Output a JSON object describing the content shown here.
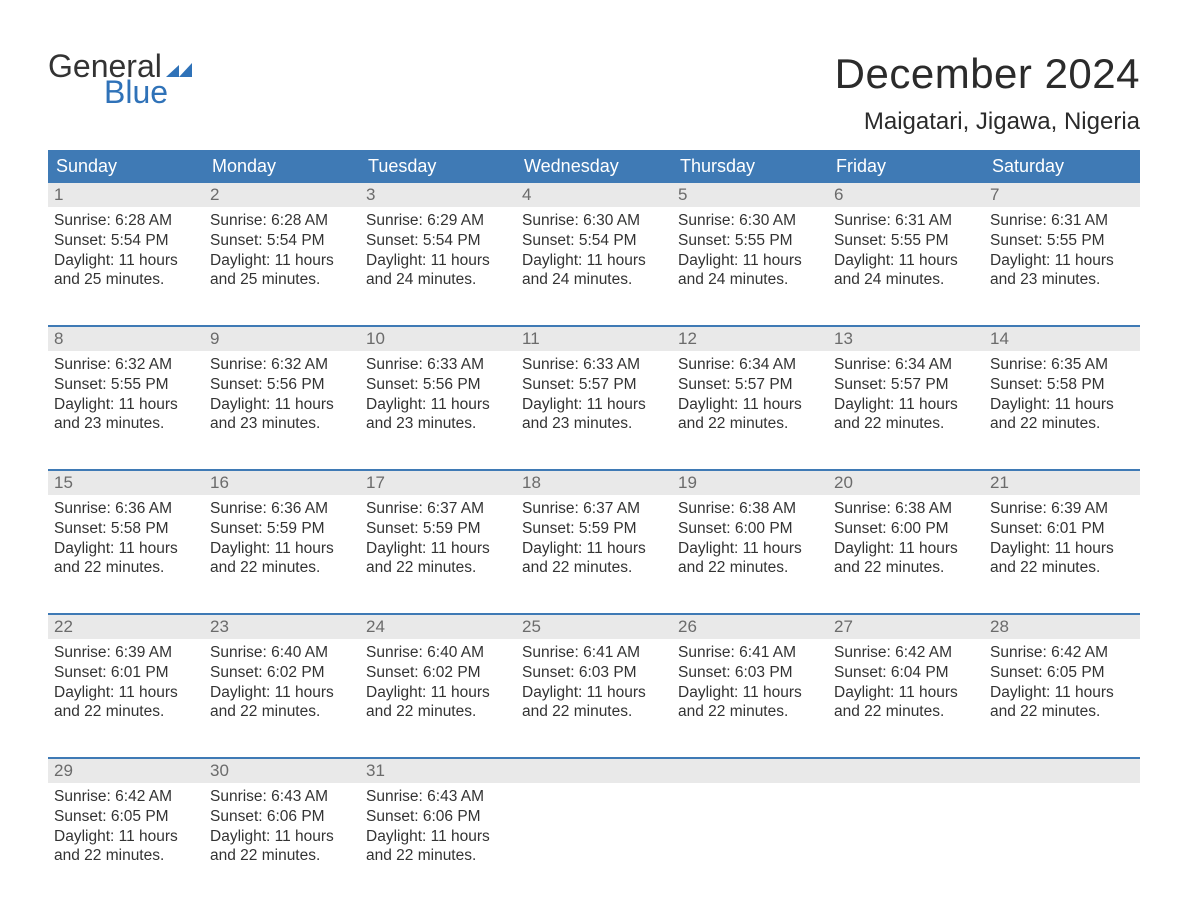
{
  "brand": {
    "part1": "General",
    "part2": "Blue",
    "flag_color": "#2f72b8"
  },
  "title": "December 2024",
  "location": "Maigatari, Jigawa, Nigeria",
  "colors": {
    "header_bg": "#3f7ab5",
    "header_text": "#ffffff",
    "daynum_bg": "#e9e9e9",
    "daynum_text": "#6b6b6b",
    "body_text": "#333333",
    "week_rule": "#3f7ab5",
    "page_bg": "#ffffff"
  },
  "day_headers": [
    "Sunday",
    "Monday",
    "Tuesday",
    "Wednesday",
    "Thursday",
    "Friday",
    "Saturday"
  ],
  "weeks": [
    [
      {
        "n": "1",
        "sr": "6:28 AM",
        "ss": "5:54 PM",
        "dl": "11 hours and 25 minutes."
      },
      {
        "n": "2",
        "sr": "6:28 AM",
        "ss": "5:54 PM",
        "dl": "11 hours and 25 minutes."
      },
      {
        "n": "3",
        "sr": "6:29 AM",
        "ss": "5:54 PM",
        "dl": "11 hours and 24 minutes."
      },
      {
        "n": "4",
        "sr": "6:30 AM",
        "ss": "5:54 PM",
        "dl": "11 hours and 24 minutes."
      },
      {
        "n": "5",
        "sr": "6:30 AM",
        "ss": "5:55 PM",
        "dl": "11 hours and 24 minutes."
      },
      {
        "n": "6",
        "sr": "6:31 AM",
        "ss": "5:55 PM",
        "dl": "11 hours and 24 minutes."
      },
      {
        "n": "7",
        "sr": "6:31 AM",
        "ss": "5:55 PM",
        "dl": "11 hours and 23 minutes."
      }
    ],
    [
      {
        "n": "8",
        "sr": "6:32 AM",
        "ss": "5:55 PM",
        "dl": "11 hours and 23 minutes."
      },
      {
        "n": "9",
        "sr": "6:32 AM",
        "ss": "5:56 PM",
        "dl": "11 hours and 23 minutes."
      },
      {
        "n": "10",
        "sr": "6:33 AM",
        "ss": "5:56 PM",
        "dl": "11 hours and 23 minutes."
      },
      {
        "n": "11",
        "sr": "6:33 AM",
        "ss": "5:57 PM",
        "dl": "11 hours and 23 minutes."
      },
      {
        "n": "12",
        "sr": "6:34 AM",
        "ss": "5:57 PM",
        "dl": "11 hours and 22 minutes."
      },
      {
        "n": "13",
        "sr": "6:34 AM",
        "ss": "5:57 PM",
        "dl": "11 hours and 22 minutes."
      },
      {
        "n": "14",
        "sr": "6:35 AM",
        "ss": "5:58 PM",
        "dl": "11 hours and 22 minutes."
      }
    ],
    [
      {
        "n": "15",
        "sr": "6:36 AM",
        "ss": "5:58 PM",
        "dl": "11 hours and 22 minutes."
      },
      {
        "n": "16",
        "sr": "6:36 AM",
        "ss": "5:59 PM",
        "dl": "11 hours and 22 minutes."
      },
      {
        "n": "17",
        "sr": "6:37 AM",
        "ss": "5:59 PM",
        "dl": "11 hours and 22 minutes."
      },
      {
        "n": "18",
        "sr": "6:37 AM",
        "ss": "5:59 PM",
        "dl": "11 hours and 22 minutes."
      },
      {
        "n": "19",
        "sr": "6:38 AM",
        "ss": "6:00 PM",
        "dl": "11 hours and 22 minutes."
      },
      {
        "n": "20",
        "sr": "6:38 AM",
        "ss": "6:00 PM",
        "dl": "11 hours and 22 minutes."
      },
      {
        "n": "21",
        "sr": "6:39 AM",
        "ss": "6:01 PM",
        "dl": "11 hours and 22 minutes."
      }
    ],
    [
      {
        "n": "22",
        "sr": "6:39 AM",
        "ss": "6:01 PM",
        "dl": "11 hours and 22 minutes."
      },
      {
        "n": "23",
        "sr": "6:40 AM",
        "ss": "6:02 PM",
        "dl": "11 hours and 22 minutes."
      },
      {
        "n": "24",
        "sr": "6:40 AM",
        "ss": "6:02 PM",
        "dl": "11 hours and 22 minutes."
      },
      {
        "n": "25",
        "sr": "6:41 AM",
        "ss": "6:03 PM",
        "dl": "11 hours and 22 minutes."
      },
      {
        "n": "26",
        "sr": "6:41 AM",
        "ss": "6:03 PM",
        "dl": "11 hours and 22 minutes."
      },
      {
        "n": "27",
        "sr": "6:42 AM",
        "ss": "6:04 PM",
        "dl": "11 hours and 22 minutes."
      },
      {
        "n": "28",
        "sr": "6:42 AM",
        "ss": "6:05 PM",
        "dl": "11 hours and 22 minutes."
      }
    ],
    [
      {
        "n": "29",
        "sr": "6:42 AM",
        "ss": "6:05 PM",
        "dl": "11 hours and 22 minutes."
      },
      {
        "n": "30",
        "sr": "6:43 AM",
        "ss": "6:06 PM",
        "dl": "11 hours and 22 minutes."
      },
      {
        "n": "31",
        "sr": "6:43 AM",
        "ss": "6:06 PM",
        "dl": "11 hours and 22 minutes."
      },
      null,
      null,
      null,
      null
    ]
  ],
  "labels": {
    "sunrise": "Sunrise: ",
    "sunset": "Sunset: ",
    "daylight": "Daylight: "
  }
}
